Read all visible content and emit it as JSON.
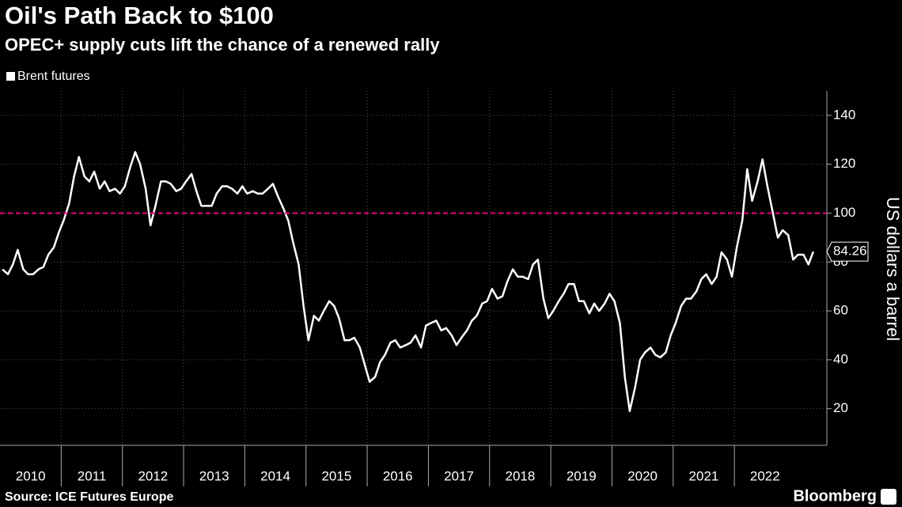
{
  "chart_data": {
    "type": "line",
    "title": "Oil's Path Back to $100",
    "subtitle": "OPEC+ supply cuts lift the chance of a renewed rally",
    "y_label": "US dollars a barrel",
    "source": "Source: ICE Futures Europe",
    "brand": "Bloomberg",
    "xlim": [
      2010,
      2023.33
    ],
    "xticks": [
      2010,
      2011,
      2012,
      2013,
      2014,
      2015,
      2016,
      2017,
      2018,
      2019,
      2020,
      2021,
      2022
    ],
    "ylim": [
      5,
      150
    ],
    "yticks": [
      20,
      40,
      60,
      80,
      100,
      120,
      140
    ],
    "grid": true,
    "reference_line": {
      "value": 100,
      "color": "#e6007e"
    },
    "x": [
      2010.04,
      2010.13,
      2010.21,
      2010.29,
      2010.38,
      2010.46,
      2010.54,
      2010.63,
      2010.71,
      2010.79,
      2010.88,
      2010.96,
      2011.04,
      2011.13,
      2011.21,
      2011.29,
      2011.38,
      2011.46,
      2011.54,
      2011.63,
      2011.71,
      2011.79,
      2011.88,
      2011.96,
      2012.04,
      2012.13,
      2012.21,
      2012.29,
      2012.38,
      2012.46,
      2012.54,
      2012.63,
      2012.71,
      2012.79,
      2012.88,
      2012.96,
      2013.04,
      2013.13,
      2013.21,
      2013.29,
      2013.38,
      2013.46,
      2013.54,
      2013.63,
      2013.71,
      2013.79,
      2013.88,
      2013.96,
      2014.04,
      2014.13,
      2014.21,
      2014.29,
      2014.38,
      2014.46,
      2014.54,
      2014.63,
      2014.71,
      2014.79,
      2014.88,
      2014.96,
      2015.04,
      2015.13,
      2015.21,
      2015.29,
      2015.38,
      2015.46,
      2015.54,
      2015.63,
      2015.71,
      2015.79,
      2015.88,
      2015.96,
      2016.04,
      2016.13,
      2016.21,
      2016.29,
      2016.38,
      2016.46,
      2016.54,
      2016.63,
      2016.71,
      2016.79,
      2016.88,
      2016.96,
      2017.04,
      2017.13,
      2017.21,
      2017.29,
      2017.38,
      2017.46,
      2017.54,
      2017.63,
      2017.71,
      2017.79,
      2017.88,
      2017.96,
      2018.04,
      2018.13,
      2018.21,
      2018.29,
      2018.38,
      2018.46,
      2018.54,
      2018.63,
      2018.71,
      2018.79,
      2018.88,
      2018.96,
      2019.04,
      2019.13,
      2019.21,
      2019.29,
      2019.38,
      2019.46,
      2019.54,
      2019.63,
      2019.71,
      2019.79,
      2019.88,
      2019.96,
      2020.04,
      2020.13,
      2020.21,
      2020.29,
      2020.38,
      2020.46,
      2020.54,
      2020.63,
      2020.71,
      2020.79,
      2020.88,
      2020.96,
      2021.04,
      2021.13,
      2021.21,
      2021.29,
      2021.38,
      2021.46,
      2021.54,
      2021.63,
      2021.71,
      2021.79,
      2021.88,
      2021.96,
      2022.04,
      2022.13,
      2022.21,
      2022.29,
      2022.38,
      2022.46,
      2022.54,
      2022.63,
      2022.71,
      2022.79,
      2022.88,
      2022.96,
      2023.04,
      2023.13,
      2023.21,
      2023.29
    ],
    "series": [
      {
        "name": "Brent futures",
        "color": "#ffffff",
        "values": [
          77,
          75,
          79,
          85,
          77,
          75,
          75,
          77,
          78,
          83,
          86,
          92,
          97,
          104,
          115,
          123,
          115,
          113,
          117,
          110,
          113,
          109,
          110,
          108,
          111,
          119,
          125,
          120,
          110,
          95,
          103,
          113,
          113,
          112,
          109,
          110,
          113,
          116,
          109,
          103,
          103,
          103,
          108,
          111,
          111,
          110,
          108,
          111,
          108,
          109,
          108,
          108,
          110,
          112,
          107,
          102,
          97,
          88,
          79,
          62,
          48,
          58,
          56,
          60,
          64,
          62,
          57,
          48,
          48,
          49,
          45,
          38,
          31,
          33,
          39,
          42,
          47,
          48,
          45,
          46,
          47,
          50,
          45,
          54,
          55,
          56,
          52,
          53,
          50,
          46,
          49,
          52,
          56,
          58,
          63,
          64,
          69,
          65,
          66,
          72,
          77,
          74,
          74,
          73,
          79,
          81,
          65,
          57,
          60,
          64,
          67,
          71,
          71,
          64,
          64,
          59,
          63,
          60,
          63,
          67,
          64,
          55,
          33,
          19,
          29,
          40,
          43,
          45,
          42,
          41,
          43,
          50,
          55,
          62,
          65,
          65,
          68,
          73,
          75,
          71,
          74,
          84,
          81,
          74,
          86,
          97,
          118,
          105,
          113,
          122,
          111,
          100,
          90,
          93,
          91,
          81,
          83,
          83,
          79,
          84.26
        ]
      }
    ]
  }
}
